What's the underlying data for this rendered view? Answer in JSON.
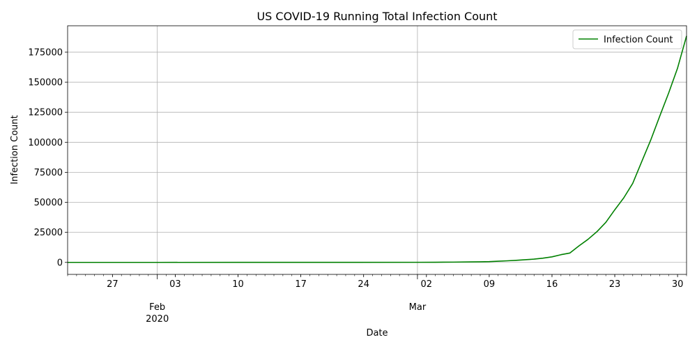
{
  "chart_data": {
    "type": "line",
    "title": "US COVID-19 Running Total Infection Count",
    "xlabel": "Date",
    "ylabel": "Infection Count",
    "grid": true,
    "legend_placement": "top-right",
    "colors": {
      "series": "#008000",
      "grid": "#b0b0b0",
      "axis": "#000000"
    },
    "x_tick_labels": [
      {
        "date": "2020-01-27",
        "label": "27"
      },
      {
        "date": "2020-02-03",
        "label": "03"
      },
      {
        "date": "2020-02-10",
        "label": "10"
      },
      {
        "date": "2020-02-17",
        "label": "17"
      },
      {
        "date": "2020-02-24",
        "label": "24"
      },
      {
        "date": "2020-03-02",
        "label": "02"
      },
      {
        "date": "2020-03-09",
        "label": "09"
      },
      {
        "date": "2020-03-16",
        "label": "16"
      },
      {
        "date": "2020-03-23",
        "label": "23"
      },
      {
        "date": "2020-03-30",
        "label": "30"
      }
    ],
    "x_major_labels": [
      {
        "date": "2020-02-01",
        "month": "Feb",
        "year": "2020"
      },
      {
        "date": "2020-03-01",
        "month": "Mar",
        "year": ""
      }
    ],
    "x_range": [
      "2020-01-22",
      "2020-03-31"
    ],
    "ylim": [
      -10000,
      197000
    ],
    "yticks": [
      0,
      25000,
      50000,
      75000,
      100000,
      125000,
      150000,
      175000
    ],
    "series": [
      {
        "name": "Infection Count",
        "x": [
          "2020-01-22",
          "2020-01-27",
          "2020-02-01",
          "2020-02-10",
          "2020-02-20",
          "2020-03-01",
          "2020-03-03",
          "2020-03-05",
          "2020-03-07",
          "2020-03-08",
          "2020-03-09",
          "2020-03-10",
          "2020-03-11",
          "2020-03-12",
          "2020-03-13",
          "2020-03-14",
          "2020-03-15",
          "2020-03-16",
          "2020-03-17",
          "2020-03-18",
          "2020-03-19",
          "2020-03-20",
          "2020-03-21",
          "2020-03-22",
          "2020-03-23",
          "2020-03-24",
          "2020-03-25",
          "2020-03-26",
          "2020-03-27",
          "2020-03-28",
          "2020-03-29",
          "2020-03-30",
          "2020-03-31"
        ],
        "values": [
          1,
          5,
          8,
          12,
          15,
          75,
          120,
          220,
          400,
          500,
          600,
          1000,
          1300,
          1700,
          2200,
          2700,
          3500,
          4600,
          6400,
          7800,
          13700,
          19100,
          25500,
          33300,
          43800,
          53700,
          65800,
          83800,
          101700,
          121500,
          140900,
          161800,
          188500
        ]
      }
    ]
  }
}
